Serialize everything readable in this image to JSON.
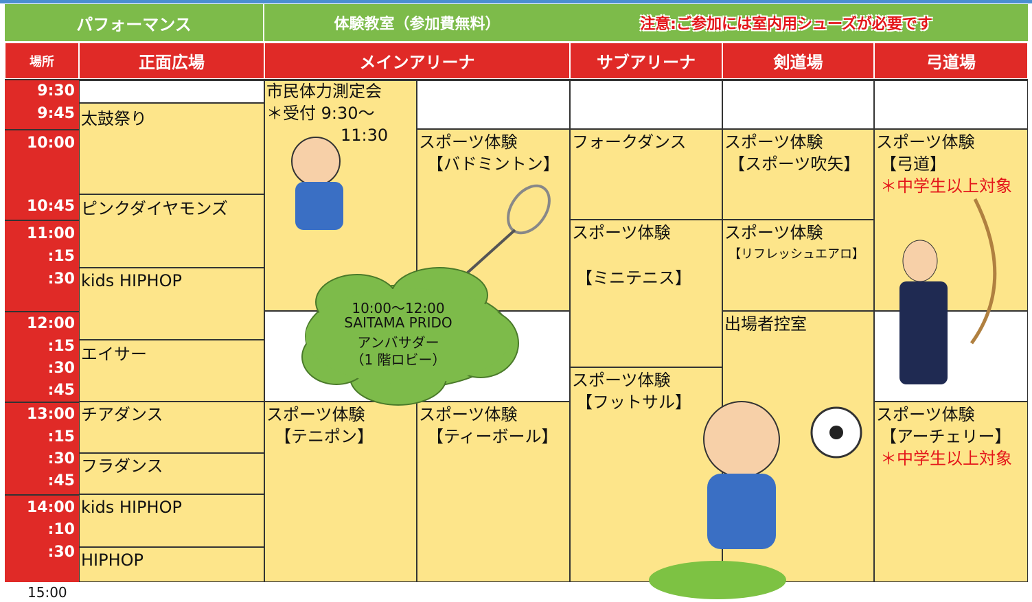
{
  "header": {
    "performance": "パフォーマンス",
    "workshop": "体験教室（参加費無料）",
    "notice": "注意:ご参加には室内用シューズが必要です"
  },
  "columns": [
    "場所",
    "正面広場",
    "メインアリーナ",
    "サブアリーナ",
    "剣道場",
    "弓道場"
  ],
  "times": [
    "9:30",
    "9:45",
    "10:00",
    "10:45",
    "11:00",
    ":15",
    ":30",
    "12:00",
    ":15",
    ":30",
    ":45",
    "13:00",
    ":15",
    ":30",
    ":45",
    "14:00",
    ":10",
    ":30"
  ],
  "end_time": "15:00",
  "cells": [
    {
      "lines": [
        "太鼓祭り"
      ]
    },
    {
      "lines": [
        "ピンクダイヤモンズ"
      ]
    },
    {
      "lines": [
        "kids HIPHOP"
      ]
    },
    {
      "lines": [
        "エイサー"
      ]
    },
    {
      "lines": [
        "チアダンス"
      ]
    },
    {
      "lines": [
        "フラダンス"
      ]
    },
    {
      "lines": [
        "kids HIPHOP"
      ]
    },
    {
      "lines": [
        "HIPHOP"
      ]
    },
    {
      "lines": [
        "市民体力測定会",
        "＊受付 9:30～",
        "11:30"
      ]
    },
    {
      "lines": [
        "スポーツ体験",
        "【テニポン】"
      ]
    },
    {
      "lines": [
        "スポーツ体験",
        "【バドミントン】"
      ]
    },
    {
      "lines": [
        "スポーツ体験",
        "【ティーボール】"
      ]
    },
    {
      "lines": [
        "フォークダンス"
      ]
    },
    {
      "lines": [
        "スポーツ体験",
        "【ミニテニス】"
      ]
    },
    {
      "lines": [
        "スポーツ体験",
        "【フットサル】"
      ]
    },
    {
      "lines": [
        "スポーツ体験",
        "【スポーツ吹矢】"
      ]
    },
    {
      "lines": [
        "スポーツ体験",
        "【リフレッシュエアロ】"
      ]
    },
    {
      "lines": [
        "出場者控室"
      ]
    },
    {
      "lines": [
        "スポーツ体験",
        "【弓道】"
      ],
      "note": "＊中学生以上対象"
    },
    {
      "lines": [
        "スポーツ体験",
        "【アーチェリー】"
      ],
      "note": "＊中学生以上対象"
    }
  ],
  "callout": {
    "lines": [
      "10:00～12:00",
      "SAITAMA PRIDO",
      "アンバサダー",
      "（1 階ロビー）"
    ]
  }
}
